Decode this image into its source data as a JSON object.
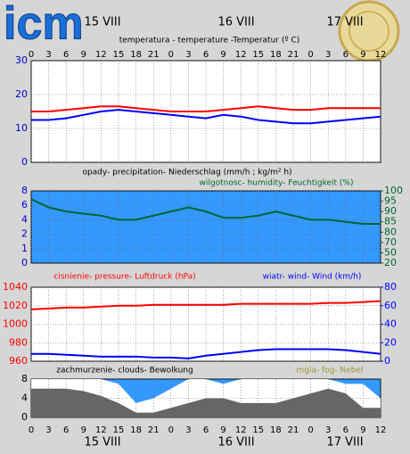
{
  "header": {
    "logo": "icm",
    "dates": [
      "15 VIII",
      "16 VIII",
      "17 VIII"
    ]
  },
  "hours": [
    "0",
    "3",
    "6",
    "9",
    "12",
    "15",
    "18",
    "21",
    "0",
    "3",
    "6",
    "9",
    "12",
    "15",
    "18",
    "21",
    "0",
    "3",
    "6",
    "9",
    "12"
  ],
  "chart_data": [
    {
      "type": "line",
      "title": "temperatura - temperature -Temperatur (º C)",
      "background": "#ffffff",
      "grid": true,
      "ylim": [
        0,
        30
      ],
      "yticks": [
        0,
        10,
        20,
        30
      ],
      "ytick_color": "#0000cc",
      "series": [
        {
          "name": "temperature",
          "color": "#ff0000",
          "values": [
            15,
            15,
            15.5,
            16,
            16.5,
            16.5,
            16,
            15.5,
            15,
            15,
            15,
            15.5,
            16,
            16.5,
            16,
            15.5,
            15.5,
            16,
            16,
            16,
            16
          ]
        },
        {
          "name": "dew point",
          "color": "#0000ff",
          "values": [
            12.5,
            12.5,
            13,
            14,
            15,
            15.5,
            15,
            14.5,
            14,
            13.5,
            13,
            14,
            13.5,
            12.5,
            12,
            11.5,
            11.5,
            12,
            12.5,
            13,
            13.5
          ]
        }
      ]
    },
    {
      "type": "line",
      "title": "opady- precipitation- Niederschlag (mm/h ; kg/m² h)",
      "y2label": "wilgotnosc- humidity- Feuchtigkeit (%)",
      "background": "#3399ff",
      "grid": true,
      "yscale": "piecewise",
      "yticks": [
        0,
        1,
        2,
        4,
        6,
        8
      ],
      "ytick_color": "#0000cc",
      "y2ticks": [
        20,
        50,
        70,
        80,
        85,
        90,
        95,
        100
      ],
      "y2tick_color": "#006633",
      "series": [
        {
          "name": "humidity",
          "color": "#006633",
          "axis": "y2",
          "values": [
            96,
            92,
            90,
            89,
            88,
            86,
            86,
            88,
            90,
            92,
            90,
            87,
            87,
            88,
            90,
            88,
            86,
            86,
            85,
            84,
            84
          ]
        }
      ]
    },
    {
      "type": "line",
      "ylabel": "cisnienie- pressure- Luftdruck (hPa)",
      "y2label": "wiatr- wind- Wind (km/h)",
      "background": "#ffffff",
      "grid": true,
      "ylim": [
        960,
        1040
      ],
      "yticks": [
        960,
        980,
        1000,
        1020,
        1040
      ],
      "ytick_color": "#ff0000",
      "y2lim": [
        0,
        80
      ],
      "y2ticks": [
        0,
        20,
        40,
        60,
        80
      ],
      "y2tick_color": "#0000ff",
      "series": [
        {
          "name": "pressure",
          "color": "#ff0000",
          "values": [
            1016,
            1017,
            1018,
            1018,
            1019,
            1020,
            1020,
            1021,
            1021,
            1021,
            1021,
            1021,
            1022,
            1022,
            1022,
            1022,
            1022,
            1023,
            1023,
            1024,
            1025
          ]
        },
        {
          "name": "wind",
          "color": "#0000ff",
          "axis": "y2",
          "values": [
            8,
            8,
            7,
            6,
            5,
            5,
            5,
            4,
            4,
            3,
            6,
            8,
            10,
            12,
            13,
            13,
            13,
            13,
            12,
            10,
            8
          ]
        }
      ]
    },
    {
      "type": "area",
      "title": "zachmurzenie- clouds- Bewolkung",
      "annotation": "mgla- fog- Nebel",
      "background": "#3399ff",
      "grid": true,
      "ylim": [
        0,
        8
      ],
      "yticks": [
        0,
        4,
        8
      ],
      "ytick_color": "#000000",
      "series": [
        {
          "name": "total clouds",
          "color": "#ffffff",
          "values": [
            8,
            8,
            8,
            8,
            8,
            7,
            3,
            4,
            6,
            8,
            8,
            7,
            8,
            8,
            8,
            8,
            8,
            8,
            7,
            7,
            4
          ]
        },
        {
          "name": "low clouds",
          "color": "#666666",
          "values": [
            6,
            6,
            6,
            5.5,
            4.5,
            3,
            1,
            1,
            2,
            3,
            4,
            4,
            3,
            3,
            3,
            4,
            5,
            6,
            5,
            2,
            2
          ]
        }
      ]
    }
  ]
}
